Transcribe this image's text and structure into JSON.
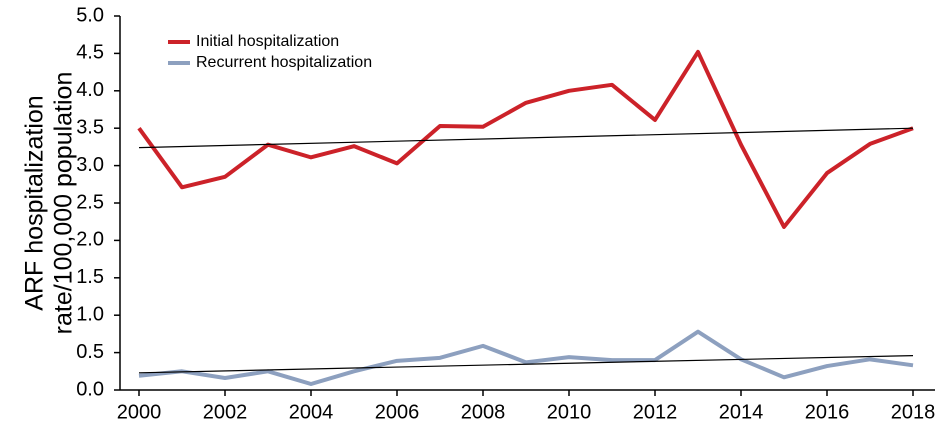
{
  "chart_data": {
    "type": "line",
    "ylabel": [
      "ARF hospitalization",
      "rate/100,000 population"
    ],
    "x": [
      2000,
      2001,
      2002,
      2003,
      2004,
      2005,
      2006,
      2007,
      2008,
      2009,
      2010,
      2011,
      2012,
      2013,
      2014,
      2015,
      2016,
      2017,
      2018
    ],
    "series": [
      {
        "name": "Initial hospitalization",
        "color": "#cc2229",
        "values": [
          3.5,
          2.71,
          2.85,
          3.28,
          3.11,
          3.26,
          3.03,
          3.53,
          3.52,
          3.84,
          4.0,
          4.08,
          3.61,
          4.52,
          3.28,
          2.18,
          2.9,
          3.29,
          3.5
        ]
      },
      {
        "name": "Recurrent hospitalization",
        "color": "#8da0bf",
        "values": [
          0.19,
          0.25,
          0.16,
          0.25,
          0.08,
          0.25,
          0.39,
          0.43,
          0.59,
          0.37,
          0.44,
          0.4,
          0.4,
          0.78,
          0.41,
          0.17,
          0.32,
          0.41,
          0.33
        ]
      }
    ],
    "trends": [
      {
        "color": "#000000",
        "x": [
          2000,
          2018
        ],
        "values": [
          3.24,
          3.5
        ]
      },
      {
        "color": "#000000",
        "x": [
          2000,
          2018
        ],
        "values": [
          0.23,
          0.46
        ]
      }
    ],
    "xlim": [
      2000,
      2018
    ],
    "xticks": [
      2000,
      2002,
      2004,
      2006,
      2008,
      2010,
      2012,
      2014,
      2016,
      2018
    ],
    "ylim": [
      0,
      5
    ],
    "yticks": [
      {
        "value": 0,
        "label": "0.0"
      },
      {
        "value": 0.5,
        "label": "0.5"
      },
      {
        "value": 1,
        "label": "1.0"
      },
      {
        "value": 1.5,
        "label": "1.5"
      },
      {
        "value": 2,
        "label": "2.0"
      },
      {
        "value": 2.5,
        "label": "2.5"
      },
      {
        "value": 3,
        "label": "3.0"
      },
      {
        "value": 3.5,
        "label": "3.5"
      },
      {
        "value": 4,
        "label": "4.0"
      },
      {
        "value": 4.5,
        "label": "4.5"
      },
      {
        "value": 5,
        "label": "5.0"
      }
    ],
    "legend": "upper left"
  }
}
